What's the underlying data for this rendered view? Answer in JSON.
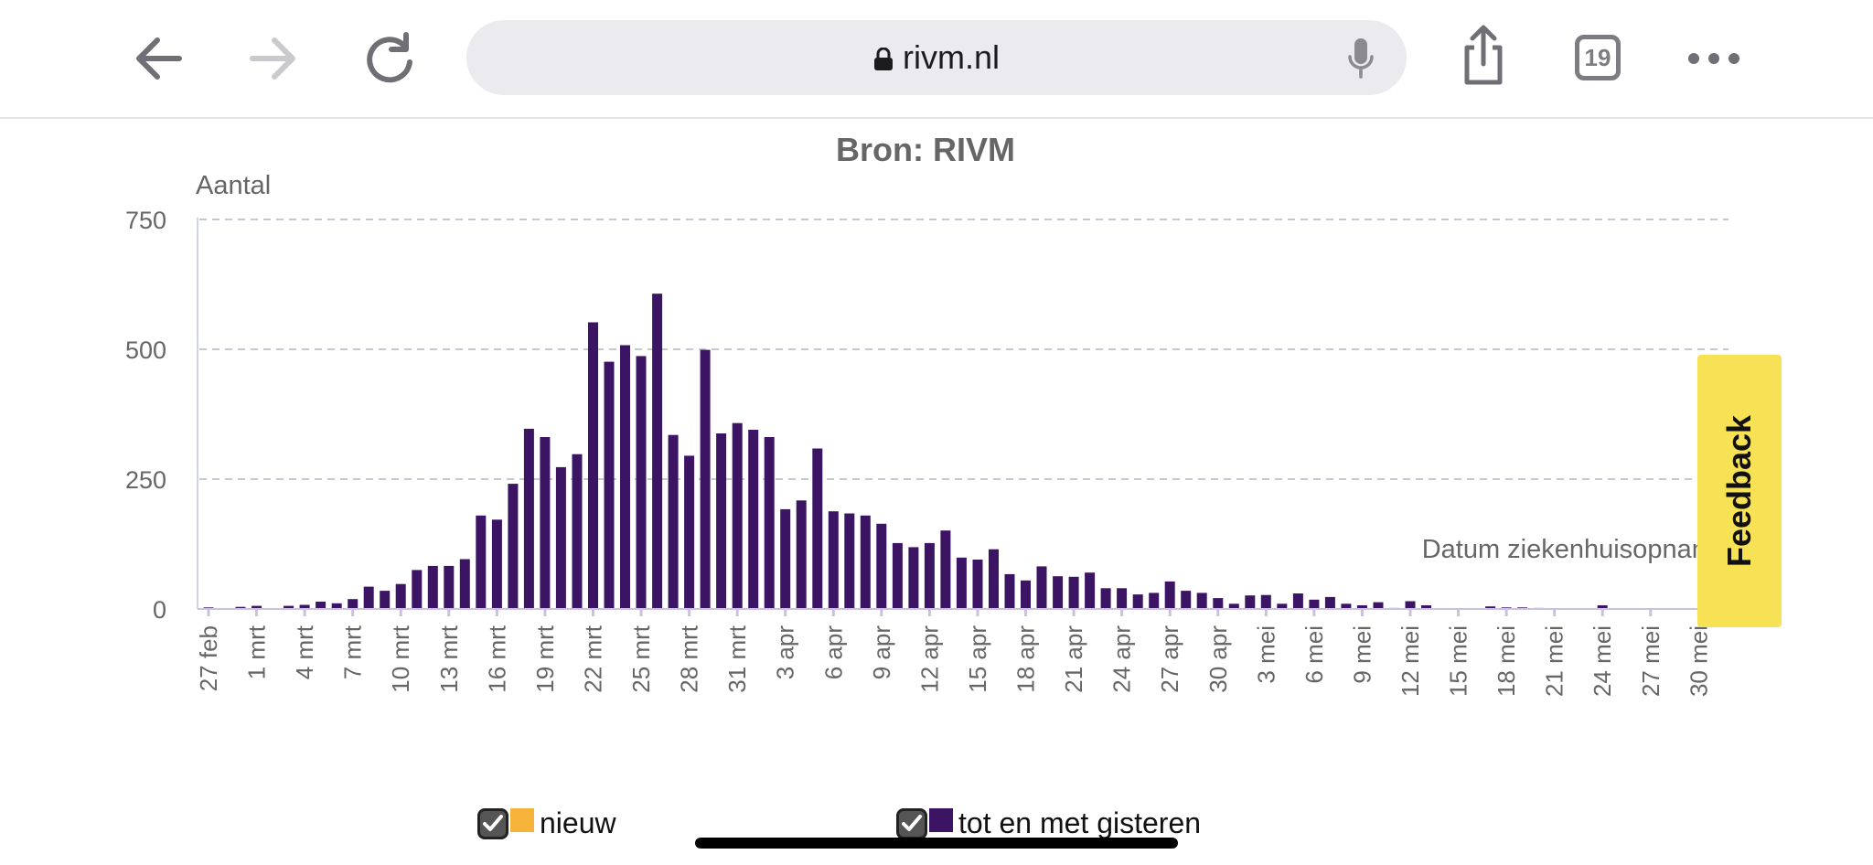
{
  "browser": {
    "url": "rivm.nl",
    "tab_count": "19",
    "icons": [
      "back-arrow-icon",
      "forward-arrow-icon",
      "reload-icon",
      "lock-icon",
      "microphone-icon",
      "share-icon",
      "tabs-icon",
      "more-icon"
    ]
  },
  "feedback": {
    "label": "Feedback",
    "color": "#f7e154"
  },
  "chart_data": {
    "type": "bar",
    "title": "Bron: RIVM",
    "ylabel": "Aantal",
    "xlabel": "Datum ziekenhuisopname",
    "ylim": [
      0,
      750
    ],
    "yticks": [
      "0",
      "250",
      "500",
      "750"
    ],
    "grid": true,
    "xtick_labels": [
      "27 feb",
      "1 mrt",
      "4 mrt",
      "7 mrt",
      "10 mrt",
      "13 mrt",
      "16 mrt",
      "19 mrt",
      "22 mrt",
      "25 mrt",
      "28 mrt",
      "31 mrt",
      "3 apr",
      "6 apr",
      "9 apr",
      "12 apr",
      "15 apr",
      "18 apr",
      "21 apr",
      "24 apr",
      "27 apr",
      "30 apr",
      "3 mei",
      "6 mei",
      "9 mei",
      "12 mei",
      "15 mei",
      "18 mei",
      "21 mei",
      "24 mei",
      "27 mei",
      "30 mei"
    ],
    "categories": [
      "27 feb",
      "28 feb",
      "29 feb",
      "1 mrt",
      "2 mrt",
      "3 mrt",
      "4 mrt",
      "5 mrt",
      "6 mrt",
      "7 mrt",
      "8 mrt",
      "9 mrt",
      "10 mrt",
      "11 mrt",
      "12 mrt",
      "13 mrt",
      "14 mrt",
      "15 mrt",
      "16 mrt",
      "17 mrt",
      "18 mrt",
      "19 mrt",
      "20 mrt",
      "21 mrt",
      "22 mrt",
      "23 mrt",
      "24 mrt",
      "25 mrt",
      "26 mrt",
      "27 mrt",
      "28 mrt",
      "29 mrt",
      "30 mrt",
      "31 mrt",
      "1 apr",
      "2 apr",
      "3 apr",
      "4 apr",
      "5 apr",
      "6 apr",
      "7 apr",
      "8 apr",
      "9 apr",
      "10 apr",
      "11 apr",
      "12 apr",
      "13 apr",
      "14 apr",
      "15 apr",
      "16 apr",
      "17 apr",
      "18 apr",
      "19 apr",
      "20 apr",
      "21 apr",
      "22 apr",
      "23 apr",
      "24 apr",
      "25 apr",
      "26 apr",
      "27 apr",
      "28 apr",
      "29 apr",
      "30 apr",
      "1 mei",
      "2 mei",
      "3 mei",
      "4 mei",
      "5 mei",
      "6 mei",
      "7 mei",
      "8 mei",
      "9 mei",
      "10 mei",
      "11 mei",
      "12 mei",
      "13 mei",
      "14 mei",
      "15 mei",
      "16 mei",
      "17 mei",
      "18 mei",
      "19 mei",
      "20 mei",
      "21 mei",
      "22 mei",
      "23 mei",
      "24 mei",
      "25 mei",
      "26 mei",
      "27 mei",
      "28 mei",
      "29 mei",
      "30 mei",
      "31 mei"
    ],
    "series": [
      {
        "name": "nieuw",
        "color": "#f6b33a",
        "values": [
          0,
          0,
          0,
          0,
          0,
          0,
          0,
          0,
          0,
          0,
          0,
          0,
          0,
          0,
          0,
          0,
          0,
          0,
          0,
          0,
          0,
          0,
          0,
          0,
          0,
          0,
          0,
          0,
          0,
          0,
          0,
          0,
          0,
          0,
          0,
          0,
          0,
          0,
          0,
          0,
          0,
          0,
          0,
          0,
          0,
          0,
          0,
          0,
          0,
          0,
          0,
          0,
          0,
          0,
          0,
          0,
          0,
          0,
          0,
          0,
          0,
          0,
          0,
          0,
          0,
          0,
          0,
          0,
          0,
          0,
          0,
          0,
          0,
          0,
          0,
          0,
          0,
          0,
          0,
          0,
          0,
          0,
          0,
          0,
          0,
          0,
          0,
          0,
          0,
          0,
          0,
          0,
          0,
          0,
          0
        ]
      },
      {
        "name": "tot en met gisteren",
        "color": "#3b1463",
        "values": [
          3,
          0,
          4,
          6,
          0,
          6,
          8,
          14,
          11,
          19,
          43,
          35,
          48,
          75,
          83,
          83,
          96,
          180,
          172,
          241,
          347,
          331,
          273,
          298,
          552,
          476,
          508,
          487,
          607,
          335,
          295,
          499,
          338,
          358,
          345,
          331,
          192,
          209,
          309,
          188,
          184,
          180,
          164,
          127,
          119,
          127,
          151,
          99,
          95,
          115,
          67,
          55,
          82,
          63,
          62,
          70,
          40,
          40,
          28,
          31,
          53,
          35,
          31,
          21,
          10,
          26,
          27,
          10,
          30,
          18,
          23,
          10,
          7,
          13,
          2,
          15,
          7,
          1,
          1,
          0,
          5,
          3,
          3,
          2,
          1,
          0,
          0,
          7,
          0,
          0,
          0,
          0,
          0,
          0,
          0
        ]
      }
    ]
  },
  "legend": [
    {
      "label": "nieuw",
      "color": "#f6b33a"
    },
    {
      "label": "tot en met gisteren",
      "color": "#3b1463"
    }
  ]
}
